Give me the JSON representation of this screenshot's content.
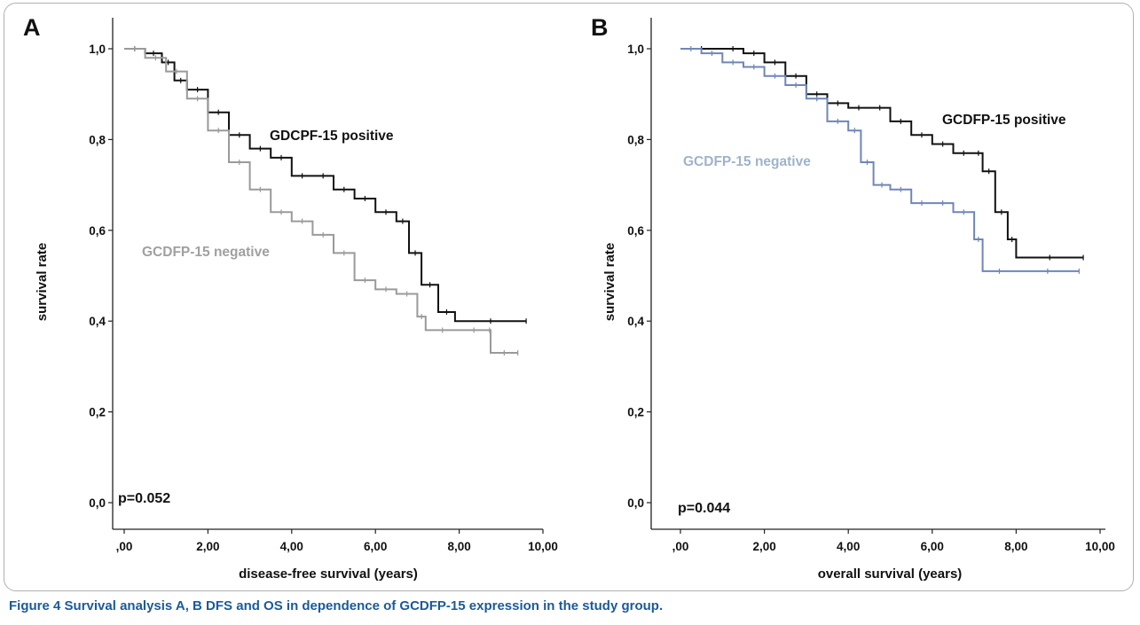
{
  "caption": {
    "label": "Figure 4",
    "text": "Survival analysis A, B DFS and OS in dependence of GCDFP-15 expression in the study group."
  },
  "colors": {
    "positive": "#111111",
    "negative_A": "#9a9a9a",
    "negative_B": "#6f86b8",
    "negative_B_label": "#9fb3c9"
  },
  "chart_data": [
    {
      "type": "line",
      "panel": "A",
      "xlabel": "disease-free survival (years)",
      "ylabel": "survival rate",
      "xlim": [
        -0.4,
        10.4
      ],
      "ylim": [
        -0.03,
        1.09
      ],
      "xticks": [
        0,
        2,
        4,
        6,
        8,
        10
      ],
      "xtick_labels": [
        ",00",
        "2,00",
        "4,00",
        "6,00",
        "8,00",
        "10,00"
      ],
      "yticks": [
        0,
        0.2,
        0.4,
        0.6,
        0.8,
        1.0
      ],
      "ytick_labels": [
        "0,0",
        "0,2",
        "0,4",
        "0,6",
        "0,8",
        "1,0"
      ],
      "p_value": "p=0.052",
      "series": [
        {
          "name": "GDCPF-15 positive",
          "points": [
            [
              0,
              1.0
            ],
            [
              0.5,
              0.99
            ],
            [
              0.9,
              0.97
            ],
            [
              1.2,
              0.93
            ],
            [
              1.5,
              0.91
            ],
            [
              2.0,
              0.86
            ],
            [
              2.5,
              0.81
            ],
            [
              3.0,
              0.78
            ],
            [
              3.5,
              0.76
            ],
            [
              4.0,
              0.72
            ],
            [
              4.5,
              0.72
            ],
            [
              5.0,
              0.69
            ],
            [
              5.5,
              0.67
            ],
            [
              6.0,
              0.64
            ],
            [
              6.5,
              0.62
            ],
            [
              6.8,
              0.55
            ],
            [
              7.1,
              0.48
            ],
            [
              7.5,
              0.42
            ],
            [
              7.9,
              0.4
            ],
            [
              9.6,
              0.4
            ]
          ]
        },
        {
          "name": "GCDFP-15 negative",
          "points": [
            [
              0,
              1.0
            ],
            [
              0.5,
              0.98
            ],
            [
              1.0,
              0.95
            ],
            [
              1.5,
              0.89
            ],
            [
              2.0,
              0.82
            ],
            [
              2.5,
              0.75
            ],
            [
              3.0,
              0.69
            ],
            [
              3.5,
              0.64
            ],
            [
              4.0,
              0.62
            ],
            [
              4.5,
              0.59
            ],
            [
              5.0,
              0.55
            ],
            [
              5.5,
              0.49
            ],
            [
              6.0,
              0.47
            ],
            [
              6.5,
              0.46
            ],
            [
              7.0,
              0.41
            ],
            [
              7.2,
              0.38
            ],
            [
              8.0,
              0.38
            ],
            [
              8.7,
              0.38
            ],
            [
              8.75,
              0.33
            ],
            [
              9.4,
              0.33
            ]
          ]
        }
      ]
    },
    {
      "type": "line",
      "panel": "B",
      "xlabel": "overall survival (years)",
      "ylabel": "survival rate",
      "xlim": [
        -0.4,
        10.4
      ],
      "ylim": [
        -0.03,
        1.09
      ],
      "xticks": [
        0,
        2,
        4,
        6,
        8,
        10
      ],
      "xtick_labels": [
        ",00",
        "2,00",
        "4,00",
        "6,00",
        "8,00",
        "10,00"
      ],
      "yticks": [
        0,
        0.2,
        0.4,
        0.6,
        0.8,
        1.0
      ],
      "ytick_labels": [
        "0,0",
        "0,2",
        "0,4",
        "0,6",
        "0,8",
        "1,0"
      ],
      "p_value": "p=0.044",
      "series": [
        {
          "name": "GCDFP-15 positive",
          "points": [
            [
              0,
              1.0
            ],
            [
              1.0,
              1.0
            ],
            [
              1.5,
              0.99
            ],
            [
              2.0,
              0.97
            ],
            [
              2.5,
              0.94
            ],
            [
              3.0,
              0.9
            ],
            [
              3.5,
              0.88
            ],
            [
              4.0,
              0.87
            ],
            [
              4.5,
              0.87
            ],
            [
              5.0,
              0.84
            ],
            [
              5.5,
              0.81
            ],
            [
              6.0,
              0.79
            ],
            [
              6.5,
              0.77
            ],
            [
              7.0,
              0.77
            ],
            [
              7.2,
              0.73
            ],
            [
              7.5,
              0.64
            ],
            [
              7.8,
              0.58
            ],
            [
              8.0,
              0.54
            ],
            [
              9.6,
              0.54
            ]
          ]
        },
        {
          "name": "GCDFP-15 negative",
          "points": [
            [
              0,
              1.0
            ],
            [
              0.5,
              0.99
            ],
            [
              1.0,
              0.97
            ],
            [
              1.5,
              0.96
            ],
            [
              2.0,
              0.94
            ],
            [
              2.5,
              0.92
            ],
            [
              3.0,
              0.89
            ],
            [
              3.5,
              0.84
            ],
            [
              4.0,
              0.82
            ],
            [
              4.3,
              0.75
            ],
            [
              4.6,
              0.7
            ],
            [
              5.0,
              0.69
            ],
            [
              5.5,
              0.66
            ],
            [
              6.0,
              0.66
            ],
            [
              6.5,
              0.64
            ],
            [
              7.0,
              0.58
            ],
            [
              7.2,
              0.51
            ],
            [
              8.0,
              0.51
            ],
            [
              9.5,
              0.51
            ]
          ]
        }
      ]
    }
  ]
}
